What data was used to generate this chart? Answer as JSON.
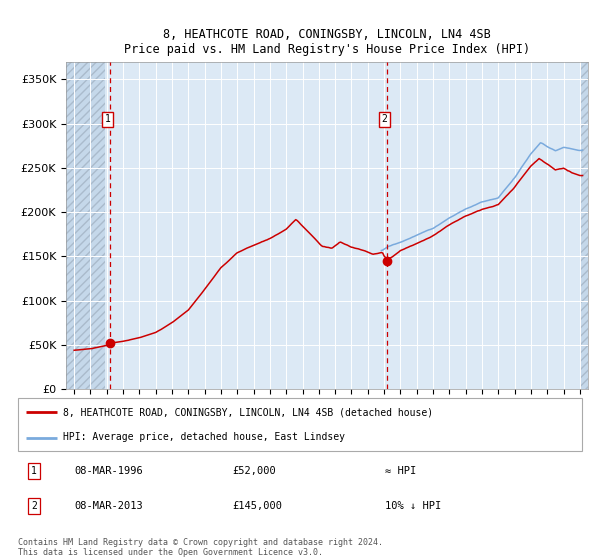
{
  "title": "8, HEATHCOTE ROAD, CONINGSBY, LINCOLN, LN4 4SB",
  "subtitle": "Price paid vs. HM Land Registry's House Price Index (HPI)",
  "legend_line1": "8, HEATHCOTE ROAD, CONINGSBY, LINCOLN, LN4 4SB (detached house)",
  "legend_line2": "HPI: Average price, detached house, East Lindsey",
  "annotation1_date": "08-MAR-1996",
  "annotation1_price": "£52,000",
  "annotation1_hpi": "≈ HPI",
  "annotation2_date": "08-MAR-2013",
  "annotation2_price": "£145,000",
  "annotation2_hpi": "10% ↓ HPI",
  "footer": "Contains HM Land Registry data © Crown copyright and database right 2024.\nThis data is licensed under the Open Government Licence v3.0.",
  "sale1_year": 1996.19,
  "sale1_price": 52000,
  "sale2_year": 2013.19,
  "sale2_price": 145000,
  "hpi_color": "#7aaadd",
  "price_color": "#cc0000",
  "sale_dot_color": "#cc0000",
  "vline_color": "#cc0000",
  "bg_color": "#dce9f5",
  "hatch_fc": "#c5d8ea",
  "ylim_max": 370000,
  "ylim_min": 0,
  "xlim_min": 1993.5,
  "xlim_max": 2025.5,
  "hatch_right_start": 2025.0
}
